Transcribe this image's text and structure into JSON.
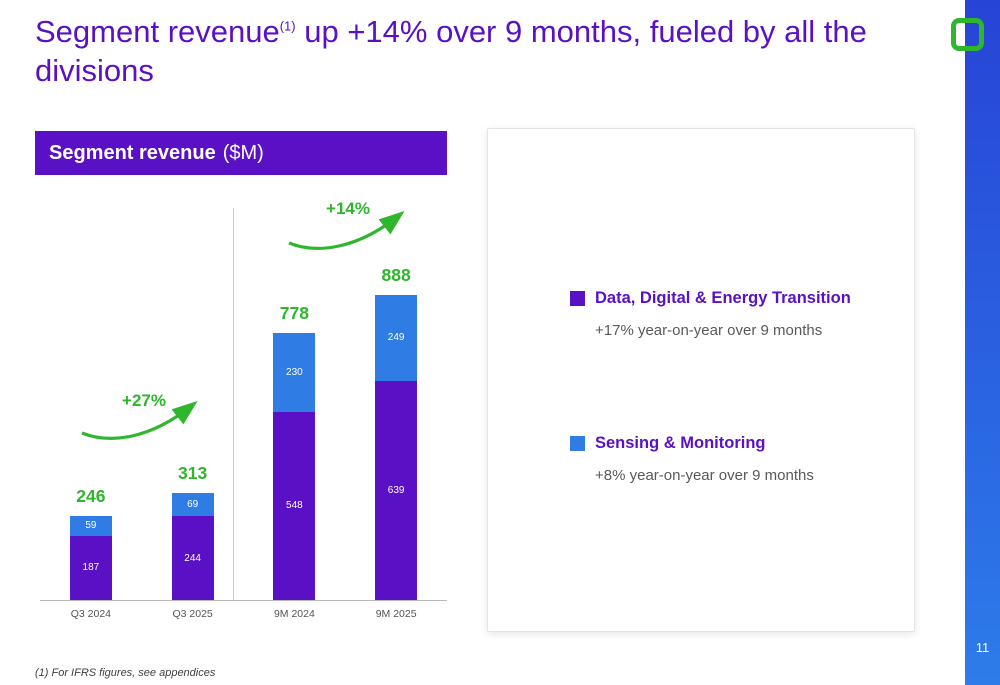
{
  "colors": {
    "purple": "#5a10c4",
    "blue": "#2e7ce4",
    "green": "#2eb62c",
    "sidebar_top": "#2744d6",
    "sidebar_bottom": "#2d7cea"
  },
  "header": {
    "title_pre": "Segment revenue",
    "title_sup": "(1)",
    "title_post": " up +14% over 9 months, fueled by all the divisions"
  },
  "banner": {
    "bold": "Segment revenue",
    "suffix": "($M)"
  },
  "chart_data": {
    "type": "bar",
    "stacked": true,
    "title": "Segment revenue ($M)",
    "unit": "$M",
    "categories": [
      "Q3 2024",
      "Q3 2025",
      "9M 2024",
      "9M 2025"
    ],
    "series": [
      {
        "name": "Data, Digital & Energy Transition",
        "color": "#5a10c4",
        "values": [
          187,
          244,
          548,
          639
        ]
      },
      {
        "name": "Sensing & Monitoring",
        "color": "#2e7ce4",
        "values": [
          59,
          69,
          230,
          249
        ]
      }
    ],
    "totals": [
      246,
      313,
      778,
      888
    ],
    "growth_annotations": [
      {
        "label": "+27%",
        "from": "Q3 2024",
        "to": "Q3 2025"
      },
      {
        "label": "+14%",
        "from": "9M 2024",
        "to": "9M 2025"
      }
    ],
    "ylim": [
      0,
      950
    ],
    "grid": false,
    "legend_position": "right"
  },
  "legend": {
    "items": [
      {
        "label": "Data, Digital & Energy Transition",
        "sublabel": "+17% year-on-year over 9 months",
        "color": "#5a10c4"
      },
      {
        "label": "Sensing & Monitoring",
        "sublabel": "+8% year-on-year over 9 months",
        "color": "#2e7ce4"
      }
    ]
  },
  "footer": {
    "footnote": "(1) For IFRS figures, see appendices",
    "page_number": "11"
  }
}
